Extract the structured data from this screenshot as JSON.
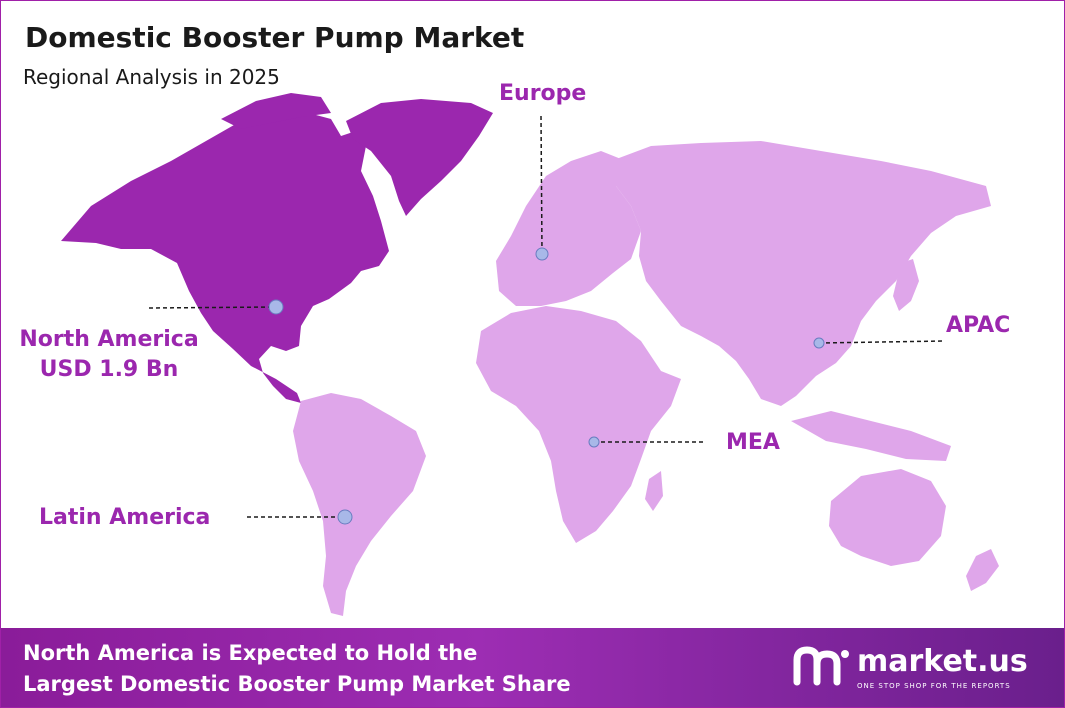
{
  "header": {
    "title": "Domestic Booster Pump Market",
    "subtitle": "Regional Analysis in 2025"
  },
  "regions": {
    "north_america": {
      "name": "North America",
      "value": "USD 1.9 Bn"
    },
    "europe": {
      "name": "Europe"
    },
    "apac": {
      "name": "APAC"
    },
    "mea": {
      "name": "MEA"
    },
    "latin_america": {
      "name": "Latin America"
    }
  },
  "footer": {
    "line1": "North America is Expected to Hold the",
    "line2": "Largest Domestic Booster Pump Market Share"
  },
  "brand": {
    "name": "market.us",
    "tagline": "ONE STOP SHOP FOR THE REPORTS"
  },
  "colors": {
    "highlight_region": "#9b27ae",
    "other_regions": "#dfa6ea",
    "marker": "#a8b8e8",
    "label": "#9b27ae",
    "footer": "#9b27ae"
  }
}
